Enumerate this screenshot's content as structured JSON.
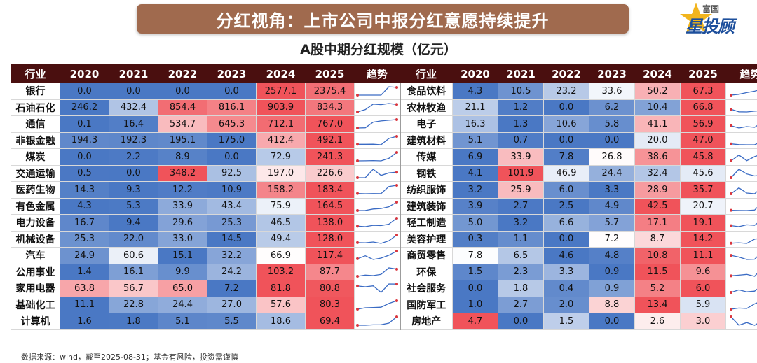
{
  "header": {
    "banner_title": "分红视角：上市公司中报分红意愿持续提升",
    "logo_top": "富国",
    "logo_main": "星投顾"
  },
  "chart_data": {
    "type": "table",
    "title": "A股中期分红规模（亿元）",
    "columns": [
      "行业",
      "2020",
      "2021",
      "2022",
      "2023",
      "2024",
      "2025",
      "趋势"
    ],
    "rows": [
      {
        "industry": "银行",
        "values": [
          "0.0",
          "0.0",
          "0.0",
          "0.0",
          "2577.1",
          "2375.4"
        ]
      },
      {
        "industry": "石油石化",
        "values": [
          "246.2",
          "432.4",
          "854.4",
          "816.1",
          "903.9",
          "834.3"
        ]
      },
      {
        "industry": "通信",
        "values": [
          "0.1",
          "16.4",
          "534.7",
          "645.3",
          "712.1",
          "767.0"
        ]
      },
      {
        "industry": "非银金融",
        "values": [
          "194.3",
          "192.3",
          "195.1",
          "175.0",
          "412.4",
          "492.1"
        ]
      },
      {
        "industry": "煤炭",
        "values": [
          "0.0",
          "2.2",
          "8.9",
          "0.0",
          "72.9",
          "241.3"
        ]
      },
      {
        "industry": "交通运输",
        "values": [
          "0.5",
          "0.0",
          "348.2",
          "92.5",
          "197.0",
          "226.6"
        ]
      },
      {
        "industry": "医药生物",
        "values": [
          "14.3",
          "9.3",
          "12.2",
          "10.9",
          "158.2",
          "183.4"
        ]
      },
      {
        "industry": "有色金属",
        "values": [
          "4.3",
          "5.3",
          "33.9",
          "43.4",
          "75.9",
          "164.5"
        ]
      },
      {
        "industry": "电力设备",
        "values": [
          "16.7",
          "9.4",
          "29.6",
          "25.3",
          "46.5",
          "138.0"
        ]
      },
      {
        "industry": "机械设备",
        "values": [
          "25.3",
          "22.0",
          "33.0",
          "14.5",
          "49.4",
          "128.0"
        ]
      },
      {
        "industry": "汽车",
        "values": [
          "24.9",
          "60.6",
          "15.1",
          "32.2",
          "66.9",
          "117.4"
        ]
      },
      {
        "industry": "公用事业",
        "values": [
          "1.4",
          "16.1",
          "9.9",
          "24.2",
          "103.2",
          "87.7"
        ]
      },
      {
        "industry": "家用电器",
        "values": [
          "63.8",
          "56.7",
          "65.0",
          "7.2",
          "81.8",
          "80.8"
        ]
      },
      {
        "industry": "基础化工",
        "values": [
          "11.1",
          "22.8",
          "24.4",
          "27.0",
          "57.6",
          "80.3"
        ]
      },
      {
        "industry": "计算机",
        "values": [
          "1.6",
          "1.8",
          "5.1",
          "5.5",
          "18.6",
          "69.4"
        ]
      },
      {
        "industry": "食品饮料",
        "values": [
          "4.3",
          "10.5",
          "23.2",
          "33.6",
          "50.2",
          "67.3"
        ]
      },
      {
        "industry": "农林牧渔",
        "values": [
          "21.1",
          "1.2",
          "0.0",
          "6.2",
          "10.4",
          "66.8"
        ]
      },
      {
        "industry": "电子",
        "values": [
          "16.3",
          "1.3",
          "10.6",
          "5.8",
          "41.1",
          "56.9"
        ]
      },
      {
        "industry": "建筑材料",
        "values": [
          "5.1",
          "0.7",
          "0.0",
          "0.0",
          "20.0",
          "47.0"
        ]
      },
      {
        "industry": "传媒",
        "values": [
          "6.9",
          "33.9",
          "7.8",
          "26.8",
          "38.6",
          "45.8"
        ]
      },
      {
        "industry": "钢铁",
        "values": [
          "4.1",
          "101.9",
          "46.9",
          "24.4",
          "32.4",
          "45.6"
        ]
      },
      {
        "industry": "纺织服饰",
        "values": [
          "3.2",
          "25.9",
          "6.0",
          "3.3",
          "28.9",
          "35.7"
        ]
      },
      {
        "industry": "建筑装饰",
        "values": [
          "3.9",
          "2.7",
          "2.5",
          "4.9",
          "42.5",
          "20.7"
        ]
      },
      {
        "industry": "轻工制造",
        "values": [
          "5.0",
          "3.2",
          "6.6",
          "5.7",
          "17.1",
          "19.1"
        ]
      },
      {
        "industry": "美容护理",
        "values": [
          "0.3",
          "1.1",
          "0.0",
          "7.2",
          "8.7",
          "14.2"
        ]
      },
      {
        "industry": "商贸零售",
        "values": [
          "7.8",
          "6.5",
          "4.6",
          "4.8",
          "10.8",
          "11.1"
        ]
      },
      {
        "industry": "环保",
        "values": [
          "1.5",
          "2.3",
          "3.3",
          "0.9",
          "11.5",
          "9.6"
        ]
      },
      {
        "industry": "社会服务",
        "values": [
          "0.0",
          "1.8",
          "0.4",
          "0.9",
          "5.2",
          "6.0"
        ]
      },
      {
        "industry": "国防军工",
        "values": [
          "1.0",
          "2.7",
          "2.0",
          "8.8",
          "13.4",
          "5.9"
        ]
      },
      {
        "industry": "房地产",
        "values": [
          "4.7",
          "0.0",
          "1.5",
          "0.0",
          "2.6",
          "3.0"
        ]
      }
    ],
    "color_scale": {
      "low": "#4a78c4",
      "mid": "#ffffff",
      "high": "#f0535a"
    }
  },
  "footnote": "数据来源：wind，截至2025-08-31；基金有风险，投资需谨慎"
}
